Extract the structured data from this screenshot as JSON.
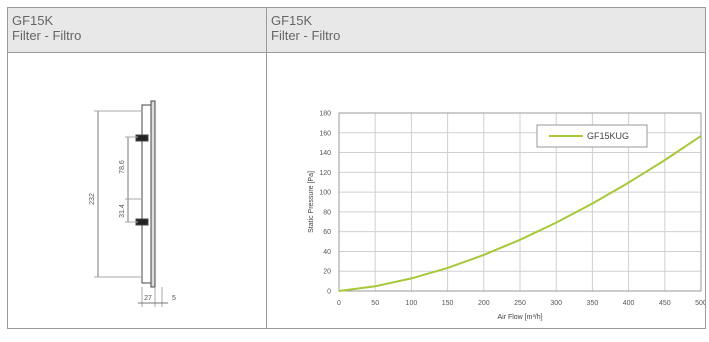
{
  "left_panel": {
    "code": "GF15K",
    "name": "Filter - Filtro"
  },
  "right_panel": {
    "code": "GF15K",
    "name": "Filter - Filtro"
  },
  "drawing": {
    "dim_height": "232",
    "dim_upper": "78.6",
    "dim_middle": "31.4",
    "dim_depth": "27",
    "dim_flange": "5"
  },
  "chart_data": {
    "type": "line",
    "xlabel": "Air Flow [m³/h]",
    "ylabel": "Static Pressure [Pa]",
    "xlim": [
      0,
      500
    ],
    "ylim": [
      0,
      180
    ],
    "x_ticks": [
      "0",
      "50",
      "100",
      "150",
      "200",
      "250",
      "300",
      "350",
      "400",
      "450",
      "500"
    ],
    "y_ticks": [
      "0",
      "20",
      "40",
      "60",
      "80",
      "100",
      "120",
      "140",
      "160",
      "180"
    ],
    "grid": true,
    "legend_position": "top-right",
    "series": [
      {
        "name": "GF15KUG",
        "color": "#a6c83a",
        "x": [
          0,
          50,
          100,
          150,
          200,
          250,
          300,
          350,
          400,
          450,
          500
        ],
        "y": [
          0,
          4.8,
          12.7,
          23.4,
          36.5,
          51.8,
          69.2,
          88.5,
          109.6,
          132.4,
          156.8
        ]
      }
    ]
  }
}
